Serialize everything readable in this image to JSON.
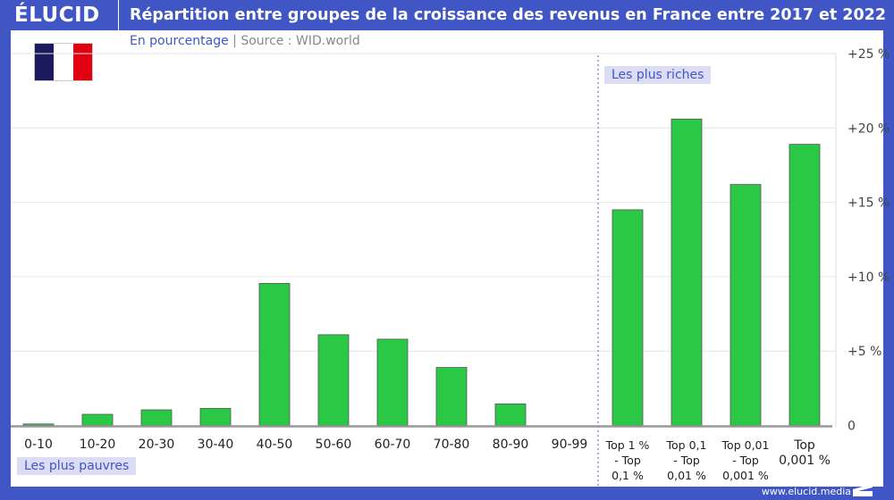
{
  "header": {
    "logo": "ÉLUCID",
    "title": "Répartition entre groupes de la croissance des revenus en France entre 2017 et 2022"
  },
  "subtitle": {
    "unit": "En pourcentage",
    "separator": "|",
    "source": "Source : WID.world"
  },
  "flag_colors": [
    "#1b1a5e",
    "#ffffff",
    "#e1000f"
  ],
  "footer": {
    "url": "www.elucid.media"
  },
  "annotations": {
    "richest": "Les plus riches",
    "poorest": "Les plus pauvres"
  },
  "colors": {
    "brand": "#3f56c4",
    "bar": "#2ac845",
    "bar_border": "#555555"
  },
  "chart_data": {
    "type": "bar",
    "title": "Répartition entre groupes de la croissance des revenus en France entre 2017 et 2022",
    "xlabel": "",
    "ylabel": "",
    "categories": [
      "0-10",
      "10-20",
      "20-30",
      "30-40",
      "40-50",
      "50-60",
      "60-70",
      "70-80",
      "80-90",
      "90-99",
      "Top 1 % - Top 0,1 %",
      "Top 0,1 - Top 0,01 %",
      "Top 0,01 - Top 0,001 %",
      "Top 0,001 %"
    ],
    "category_label_lines": [
      [
        "0-10"
      ],
      [
        "10-20"
      ],
      [
        "20-30"
      ],
      [
        "30-40"
      ],
      [
        "40-50"
      ],
      [
        "50-60"
      ],
      [
        "60-70"
      ],
      [
        "70-80"
      ],
      [
        "80-90"
      ],
      [
        "90-99"
      ],
      [
        "Top 1 %",
        "- Top",
        "0,1 %"
      ],
      [
        "Top 0,1",
        "- Top",
        "0,01 %"
      ],
      [
        "Top 0,01",
        "- Top",
        "0,001 %"
      ],
      [
        "Top",
        "0,001 %"
      ]
    ],
    "values": [
      0.1,
      0.75,
      1.05,
      1.15,
      9.55,
      6.1,
      5.8,
      3.9,
      1.45,
      0,
      14.5,
      20.6,
      16.2,
      18.9
    ],
    "ylim": [
      0,
      25
    ],
    "yticks": [
      0,
      5,
      10,
      15,
      20,
      25
    ],
    "ytick_labels": [
      "0",
      "+5 %",
      "+10 %",
      "+15 %",
      "+20 %",
      "+25 %"
    ],
    "grid": true,
    "y_axis_position": "right"
  }
}
